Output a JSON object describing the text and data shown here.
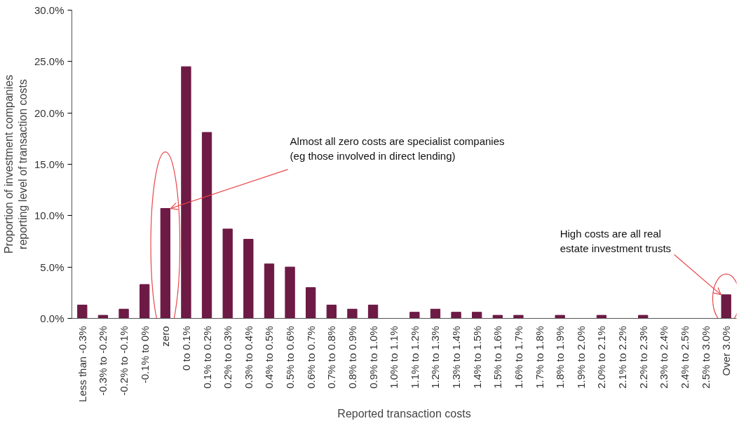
{
  "chart_data": {
    "type": "bar",
    "xlabel": "Reported transaction costs",
    "ylabel": "Proportion of investment companies\nreporting level of transaction costs",
    "categories": [
      "Less than -0.3%",
      "-0.3% to -0.2%",
      "-0.2% to -0.1%",
      "-0.1% to 0%",
      "zero",
      "0 to 0.1%",
      "0.1% to 0.2%",
      "0.2% to 0.3%",
      "0.3% to 0.4%",
      "0.4% to 0.5%",
      "0.5% to 0.6%",
      "0.6% to 0.7%",
      "0.7% to 0.8%",
      "0.8% to 0.9%",
      "0.9% to 1.0%",
      "1.0% to 1.1%",
      "1.1% to 1.2%",
      "1.2% to 1.3%",
      "1.3% to 1.4%",
      "1.4% to 1.5%",
      "1.5% to 1.6%",
      "1.6% to 1.7%",
      "1.7% to 1.8%",
      "1.8% to 1.9%",
      "1.9% to 2.0%",
      "2.0% to 2.1%",
      "2.1% to 2.2%",
      "2.2% to 2.3%",
      "2.3% to 2.4%",
      "2.4% to 2.5%",
      "2.5% to 3.0%",
      "Over 3.0%"
    ],
    "values": [
      1.3,
      0.3,
      0.9,
      3.3,
      10.7,
      24.5,
      18.1,
      8.7,
      7.7,
      5.3,
      5.0,
      3.0,
      1.3,
      0.9,
      1.3,
      0,
      0.6,
      0.9,
      0.6,
      0.6,
      0.3,
      0.3,
      0,
      0.3,
      0,
      0.3,
      0,
      0.3,
      0,
      0,
      0,
      2.3
    ],
    "color": "#6d1a45",
    "ylim": [
      0,
      30
    ],
    "yticks": [
      {
        "value": 0,
        "label": "0.0%"
      },
      {
        "value": 5,
        "label": "5.0%"
      },
      {
        "value": 10,
        "label": "10.0%"
      },
      {
        "value": 15,
        "label": "15.0%"
      },
      {
        "value": 20,
        "label": "20.0%"
      },
      {
        "value": 25,
        "label": "25.0%"
      },
      {
        "value": 30,
        "label": "30.0%"
      }
    ],
    "grid": false,
    "annotations": [
      {
        "text": "Almost all zero costs are specialist companies\n(eg those involved in direct lending)",
        "x": "zero",
        "y": 10.7
      },
      {
        "text": "High costs are all real\nestate investment trusts",
        "x": "Over 3.0%",
        "y": 2.3
      }
    ]
  }
}
